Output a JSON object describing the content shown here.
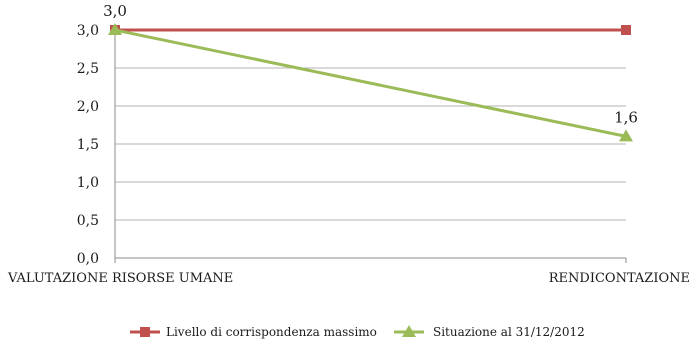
{
  "chart_data": {
    "type": "line",
    "categories": [
      "VALUTAZIONE RISORSE UMANE",
      "RENDICONTAZIONE"
    ],
    "y_ticks": [
      "0,0",
      "0,5",
      "1,0",
      "1,5",
      "2,0",
      "2,5",
      "3,0"
    ],
    "ylim": [
      0,
      3.0
    ],
    "grid": true,
    "legend_position": "bottom",
    "series": [
      {
        "name": "Livello di corrispondenza massimo",
        "values": [
          3.0,
          3.0
        ],
        "color": "#c0504d",
        "marker": "square",
        "data_labels": []
      },
      {
        "name": "Situazione al 31/12/2012",
        "values": [
          3.0,
          1.6
        ],
        "color": "#9bbb59",
        "marker": "triangle",
        "data_labels": [
          "3,0",
          "1,6"
        ]
      }
    ]
  }
}
